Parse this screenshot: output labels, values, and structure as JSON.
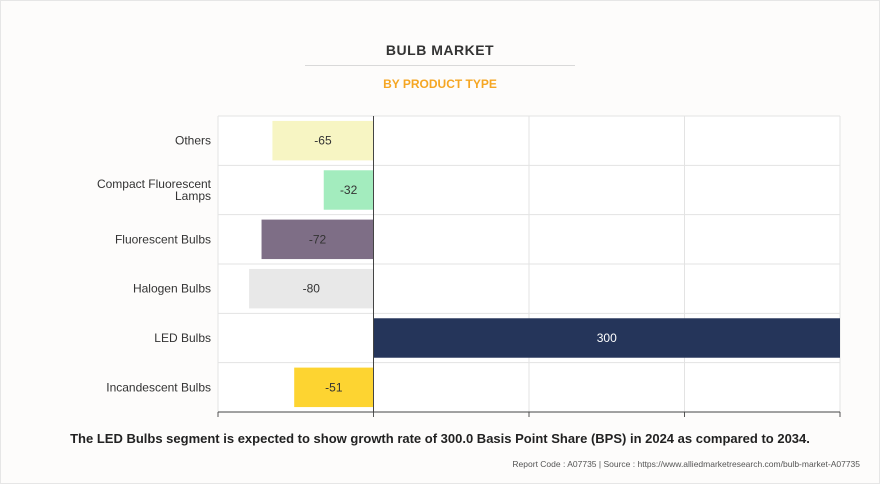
{
  "header": {
    "title": "BULB MARKET",
    "subtitle": "BY PRODUCT TYPE"
  },
  "chart_data": {
    "type": "bar",
    "orientation": "horizontal",
    "categories": [
      "Others",
      "Compact Fluorescent Lamps",
      "Fluorescent Bulbs",
      "Halogen Bulbs",
      "LED Bulbs",
      "Incandescent Bulbs"
    ],
    "values": [
      -65,
      -32,
      -72,
      -80,
      300,
      -51
    ],
    "colors": [
      "#f7f5c3",
      "#a3ecbe",
      "#7e6e86",
      "#e8e8e8",
      "#25355a",
      "#fdd431"
    ],
    "label_colors": [
      "#333333",
      "#333333",
      "#333333",
      "#333333",
      "#ffffff",
      "#333333"
    ],
    "xlim": [
      -100,
      300
    ],
    "grid": true,
    "legend": "none"
  },
  "footer": {
    "note": "The LED Bulbs segment is expected to show growth rate of 300.0 Basis Point Share (BPS) in 2024 as compared to 2034.",
    "source": "Report Code : A07735  |  Source : https://www.alliedmarketresearch.com/bulb-market-A07735"
  }
}
